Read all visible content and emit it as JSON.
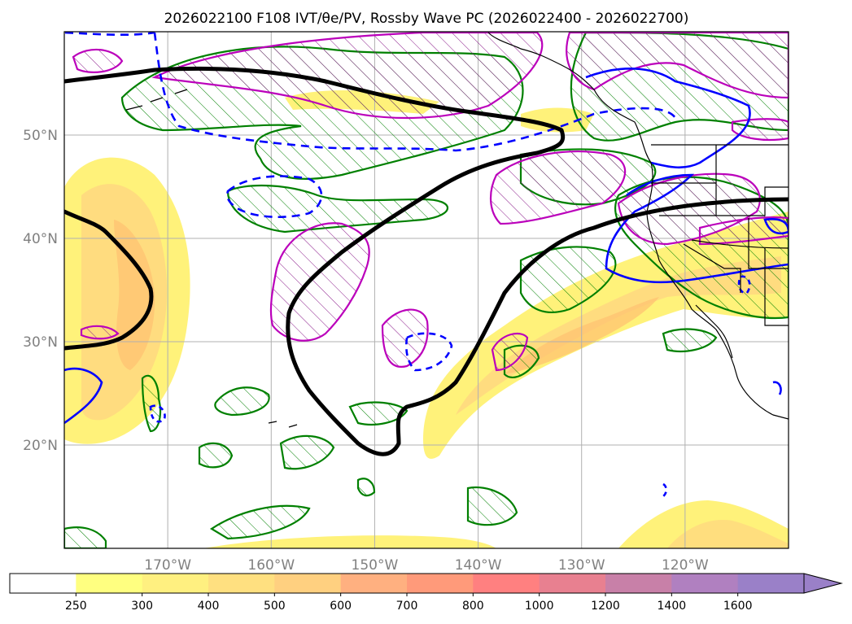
{
  "title": "2026022100 F108 IVT/θe/PV, Rossby Wave PC (2026022400 - 2026022700)",
  "map": {
    "lat_ticks": [
      {
        "lat": 50,
        "label": "50°N"
      },
      {
        "lat": 40,
        "label": "40°N"
      },
      {
        "lat": 30,
        "label": "30°N"
      },
      {
        "lat": 20,
        "label": "20°N"
      }
    ],
    "lon_ticks": [
      {
        "lon": -170,
        "label": "170°W"
      },
      {
        "lon": -160,
        "label": "160°W"
      },
      {
        "lon": -150,
        "label": "150°W"
      },
      {
        "lon": -140,
        "label": "140°W"
      },
      {
        "lon": -130,
        "label": "130°W"
      },
      {
        "lon": -120,
        "label": "120°W"
      }
    ],
    "extent": {
      "lon_min": -180,
      "lon_max": -110,
      "lat_min": 10,
      "lat_max": 60
    },
    "colors": {
      "ivt_fill": "#fff27a",
      "ivt_fill_2": "#ffe27a",
      "ivt_fill_3": "#ffc870",
      "theta_contour": "#000000",
      "pv_positive": "#008000",
      "pv_negative": "#0000ff",
      "rossby_pc": "#bb00bb",
      "coast": "#000000",
      "grid": "#b0b0b0"
    }
  },
  "colorbar": {
    "ticks": [
      "250",
      "300",
      "400",
      "500",
      "600",
      "700",
      "800",
      "1000",
      "1200",
      "1400",
      "1600"
    ],
    "colors": [
      "#ffffff",
      "#ffff80",
      "#fff080",
      "#ffe080",
      "#ffd080",
      "#ffb080",
      "#ff9a7a",
      "#ff8080",
      "#e88090",
      "#c880a8",
      "#b080c0",
      "#9a80c8"
    ]
  }
}
